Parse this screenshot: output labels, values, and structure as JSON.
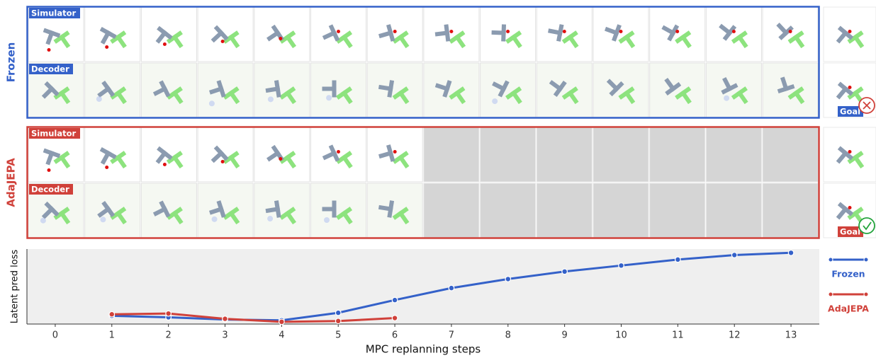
{
  "panels": [
    {
      "name": "Frozen",
      "color": "#3461c9",
      "rows": [
        "Simulator",
        "Decoder"
      ],
      "goal": "Goal",
      "success": false
    },
    {
      "name": "AdaJEPA",
      "color": "#d0413a",
      "rows": [
        "Simulator",
        "Decoder"
      ],
      "goal": "Goal",
      "success": true
    }
  ],
  "chart_data": {
    "type": "line",
    "x_label": "MPC replanning steps",
    "y_label": "Latent pred loss",
    "x": [
      0,
      1,
      2,
      3,
      4,
      5,
      6,
      7,
      8,
      9,
      10,
      11,
      12,
      13
    ],
    "series": [
      {
        "name": "Frozen",
        "color": "#3461c9",
        "values": [
          null,
          0.11,
          0.09,
          0.06,
          0.05,
          0.15,
          0.32,
          0.48,
          0.6,
          0.7,
          0.78,
          0.86,
          0.92,
          0.95
        ]
      },
      {
        "name": "AdaJEPA",
        "color": "#d0413a",
        "values": [
          null,
          0.13,
          0.14,
          0.07,
          0.03,
          0.04,
          0.08,
          null,
          null,
          null,
          null,
          null,
          null,
          null
        ]
      }
    ],
    "xlim": [
      -0.5,
      13.5
    ],
    "ylim": [
      0,
      1
    ],
    "xticks": [
      0,
      1,
      2,
      3,
      4,
      5,
      6,
      7,
      8,
      9,
      10,
      11,
      12,
      13
    ],
    "legend": "right"
  }
}
